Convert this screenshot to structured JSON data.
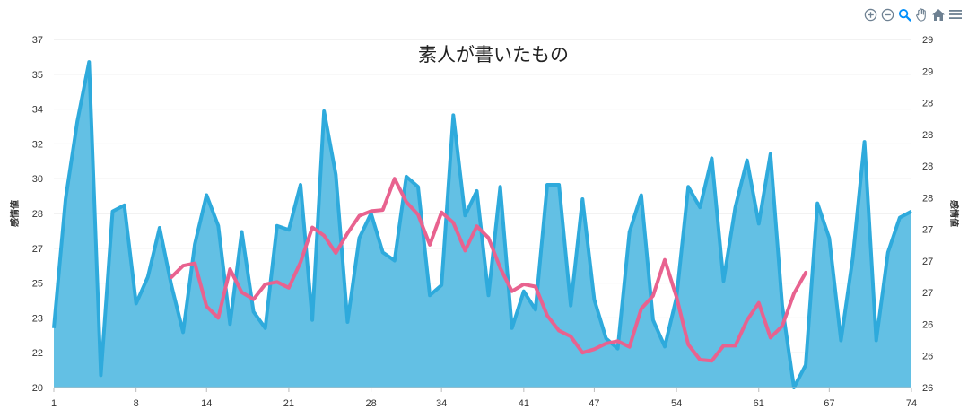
{
  "toolbar": {
    "icons": [
      "zoom-in-icon",
      "zoom-out-icon",
      "selection-zoom-icon",
      "pan-icon",
      "home-icon",
      "menu-icon"
    ],
    "accent": "#008ffb",
    "icon_color": "#6e8192"
  },
  "chart_data": {
    "type": "area",
    "title": "素人が書いたもの",
    "ylabel_left": "感情値",
    "ylabel_right": "感情値",
    "x_ticks": [
      "1",
      "8",
      "14",
      "21",
      "28",
      "34",
      "41",
      "47",
      "54",
      "61",
      "67",
      "74"
    ],
    "y_left_ticks": [
      "20",
      "22",
      "23",
      "25",
      "27",
      "28",
      "30",
      "32",
      "34",
      "35",
      "37"
    ],
    "y_right_ticks": [
      "26",
      "26",
      "26",
      "27",
      "27",
      "27",
      "28",
      "28",
      "28",
      "28",
      "29",
      "29"
    ],
    "xlim": [
      1,
      74
    ],
    "ylim_left": [
      20,
      37
    ],
    "ylim_right": [
      26,
      29
    ],
    "grid": true,
    "series": [
      {
        "axis": "left",
        "style": "area",
        "color": "#2eaadc",
        "fill": "#5bbde3",
        "x": [
          1,
          2,
          3,
          4,
          5,
          6,
          7,
          8,
          9,
          10,
          11,
          12,
          13,
          14,
          15,
          16,
          17,
          18,
          19,
          20,
          21,
          22,
          23,
          24,
          25,
          26,
          27,
          28,
          29,
          30,
          31,
          32,
          33,
          34,
          35,
          36,
          37,
          38,
          39,
          40,
          41,
          42,
          43,
          44,
          45,
          46,
          47,
          48,
          49,
          50,
          51,
          52,
          53,
          54,
          55,
          56,
          57,
          58,
          59,
          60,
          61,
          62,
          63,
          64,
          65,
          66,
          67,
          68,
          69,
          70,
          71,
          72,
          73,
          74
        ],
        "values": [
          22.9,
          29.2,
          33.0,
          35.9,
          20.6,
          28.6,
          28.9,
          24.1,
          25.4,
          27.8,
          25.0,
          22.7,
          27.0,
          29.4,
          27.9,
          23.1,
          27.6,
          23.7,
          22.9,
          27.9,
          27.7,
          29.9,
          23.3,
          33.5,
          30.4,
          23.2,
          27.3,
          28.5,
          26.6,
          26.2,
          30.3,
          29.8,
          24.5,
          25.0,
          33.3,
          28.4,
          29.6,
          24.5,
          29.8,
          22.9,
          24.7,
          23.8,
          29.9,
          29.9,
          24.0,
          29.2,
          24.3,
          22.4,
          21.9,
          27.6,
          29.4,
          23.3,
          22.0,
          24.4,
          29.8,
          28.8,
          31.2,
          25.2,
          28.8,
          31.1,
          28.0,
          31.4,
          24.0,
          20.0,
          21.1,
          29.0,
          27.3,
          22.3,
          26.3,
          32.0,
          22.3,
          26.6,
          28.3,
          28.6
        ]
      },
      {
        "axis": "right",
        "style": "line",
        "color": "#e8628f",
        "x": [
          11,
          12,
          13,
          14,
          15,
          16,
          17,
          18,
          19,
          20,
          21,
          22,
          23,
          24,
          25,
          26,
          27,
          28,
          29,
          30,
          31,
          32,
          33,
          34,
          35,
          36,
          37,
          38,
          39,
          40,
          41,
          42,
          43,
          44,
          45,
          46,
          47,
          48,
          49,
          50,
          51,
          52,
          53,
          54,
          55,
          56,
          57,
          58,
          59,
          60,
          61,
          62,
          63,
          64,
          65
        ],
        "values": [
          26.95,
          27.05,
          27.07,
          26.7,
          26.6,
          27.02,
          26.82,
          26.76,
          26.89,
          26.91,
          26.86,
          27.08,
          27.38,
          27.31,
          27.16,
          27.33,
          27.48,
          27.52,
          27.53,
          27.8,
          27.6,
          27.49,
          27.23,
          27.51,
          27.42,
          27.18,
          27.39,
          27.29,
          27.03,
          26.83,
          26.89,
          26.87,
          26.62,
          26.49,
          26.44,
          26.3,
          26.33,
          26.38,
          26.4,
          26.35,
          26.68,
          26.79,
          27.1,
          26.78,
          26.37,
          26.24,
          26.23,
          26.36,
          26.36,
          26.58,
          26.73,
          26.43,
          26.53,
          26.81,
          26.99
        ]
      }
    ]
  }
}
